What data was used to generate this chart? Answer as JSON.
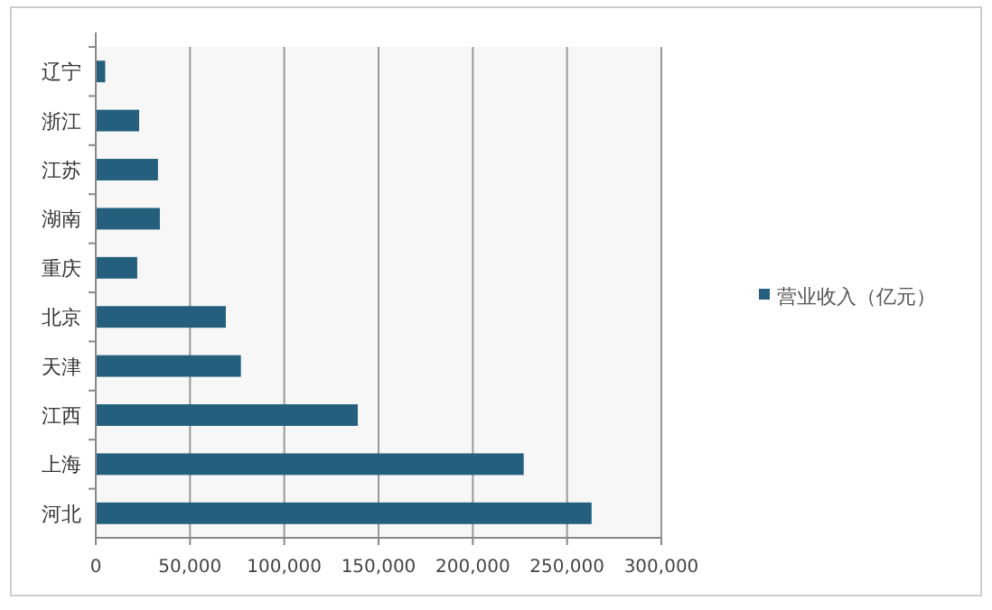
{
  "chart_data": {
    "type": "bar",
    "orientation": "horizontal",
    "categories": [
      "辽宁",
      "浙江",
      "江苏",
      "湖南",
      "重庆",
      "北京",
      "天津",
      "江西",
      "上海",
      "河北"
    ],
    "series": [
      {
        "name": "营业收入（亿元）",
        "color": "#24607e",
        "values": [
          5000,
          23000,
          33000,
          34000,
          22000,
          69000,
          77000,
          139000,
          227000,
          263000
        ]
      }
    ],
    "xlim": [
      0,
      300000
    ],
    "xticks": [
      0,
      {
        "value": 50000,
        "label": "50,000"
      },
      {
        "value": 100000,
        "label": "100,000"
      },
      {
        "value": 150000,
        "label": "150,000"
      },
      {
        "value": 200000,
        "label": "200,000"
      },
      {
        "value": 250000,
        "label": "250,000"
      },
      {
        "value": 300000,
        "label": "300,000"
      }
    ],
    "grid": "x",
    "legend": "right"
  }
}
